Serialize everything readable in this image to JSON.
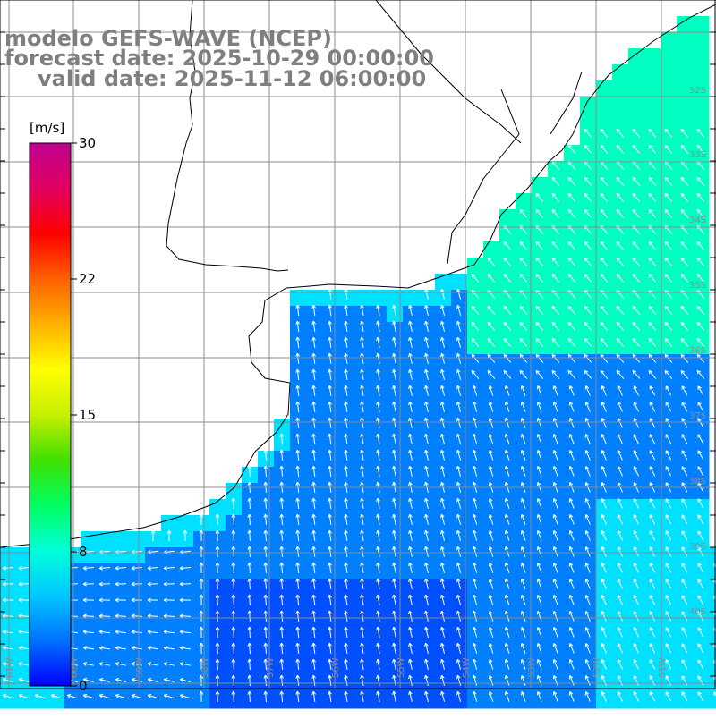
{
  "header": {
    "line1": "modelo GEFS-WAVE (NCEP)",
    "line2": "forecast date: 2025-10-29 00:00:00",
    "line3": "valid date: 2025-11-12 06:00:00"
  },
  "colorbar": {
    "unit": "[m/s]",
    "ticks": [
      "30",
      "22",
      "15",
      "8",
      "0"
    ],
    "colors": [
      "#0000ff",
      "#0070ff",
      "#00c8ff",
      "#00ffd8",
      "#00ff60",
      "#40e000",
      "#c8f000",
      "#ffff00",
      "#ffb000",
      "#ff6000",
      "#ff0000",
      "#e00060",
      "#c00090"
    ]
  },
  "lat_labels": [
    "32S",
    "33S",
    "34S",
    "35S",
    "36S",
    "37S",
    "38S",
    "39S",
    "40S"
  ],
  "lon_labels": [
    "61W",
    "60W",
    "59W",
    "58W",
    "57W",
    "56W",
    "55W",
    "54W",
    "53W",
    "52W",
    "51W"
  ],
  "field_colors": {
    "coast_cyan": "#00e0ff",
    "shelf_blue": "#0080ff",
    "deep_blue": "#0050ff",
    "ne_green": "#00ffc0",
    "land": "#ffffff"
  }
}
